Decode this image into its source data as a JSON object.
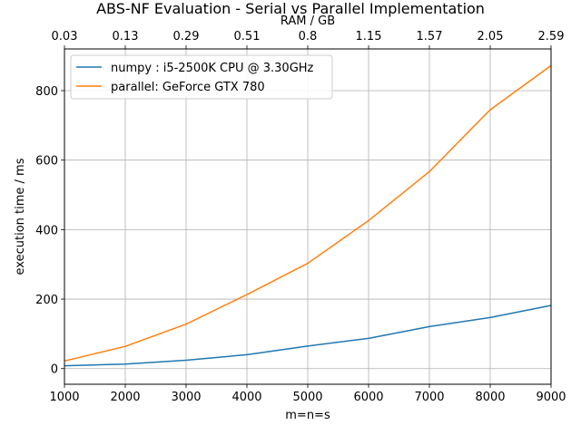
{
  "chart_data": {
    "type": "line",
    "title": "ABS-NF Evaluation - Serial vs Parallel Implementation",
    "xlabel": "m=n=s",
    "ylabel": "execution time / ms",
    "secondary_xlabel": "RAM / GB",
    "x": [
      1000,
      2000,
      3000,
      4000,
      5000,
      6000,
      7000,
      8000,
      9000
    ],
    "x_tick_labels": [
      "1000",
      "2000",
      "3000",
      "4000",
      "5000",
      "6000",
      "7000",
      "8000",
      "9000"
    ],
    "secondary_x_tick_labels": [
      "0.03",
      "0.13",
      "0.29",
      "0.51",
      "0.8",
      "1.15",
      "1.57",
      "2.05",
      "2.59"
    ],
    "y_ticks": [
      0,
      200,
      400,
      600,
      800
    ],
    "y_tick_labels": [
      "0",
      "200",
      "400",
      "600",
      "800"
    ],
    "xlim": [
      1000,
      9000
    ],
    "ylim": [
      -45,
      920
    ],
    "grid": true,
    "legend_position": "top-left",
    "series": [
      {
        "name": "numpy : i5-2500K CPU @ 3.30GHz",
        "color": "#1f77b4",
        "values": [
          8,
          13,
          24,
          40,
          65,
          87,
          121,
          147,
          182
        ]
      },
      {
        "name": "parallel: GeForce GTX 780",
        "color": "#ff7f0e",
        "values": [
          22,
          64,
          128,
          213,
          303,
          426,
          567,
          745,
          872
        ]
      }
    ]
  }
}
